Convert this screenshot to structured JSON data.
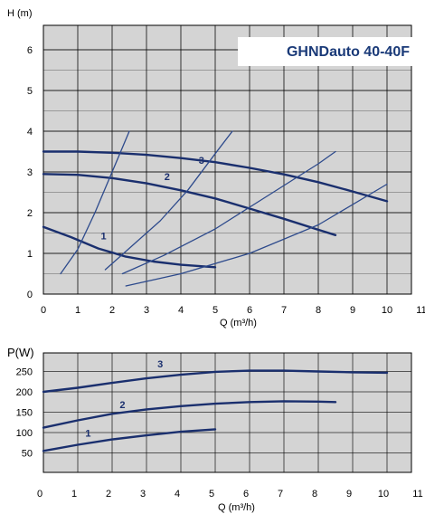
{
  "colors": {
    "background": "#d4d4d4",
    "curve": "#1a2f6e",
    "system": "#2d4a8c",
    "grid": "#000000",
    "title": "#1a3a78"
  },
  "chart_data": [
    {
      "type": "line",
      "title": "GHNDauto 40-40F",
      "xlabel": "Q (m³/h)",
      "ylabel": "H (m)",
      "xlim": [
        0,
        11
      ],
      "ylim": [
        0,
        6.5
      ],
      "x_ticks": [
        "0",
        "1",
        "2",
        "3",
        "4",
        "5",
        "6",
        "7",
        "8",
        "9",
        "10",
        "11"
      ],
      "y_ticks": [
        "0",
        "1",
        "2",
        "3",
        "4",
        "5",
        "6"
      ],
      "grid": true,
      "series": [
        {
          "name": "1",
          "x": [
            0,
            0.8,
            1.6,
            2.4,
            3.2,
            4.0,
            5.0
          ],
          "y": [
            1.65,
            1.4,
            1.12,
            0.92,
            0.8,
            0.72,
            0.66
          ]
        },
        {
          "name": "2",
          "x": [
            0,
            1,
            2,
            3,
            4,
            5,
            6,
            7,
            8,
            8.5
          ],
          "y": [
            2.95,
            2.93,
            2.85,
            2.72,
            2.55,
            2.35,
            2.1,
            1.85,
            1.58,
            1.45
          ]
        },
        {
          "name": "3",
          "x": [
            0,
            1,
            2,
            3,
            4,
            5,
            6,
            7,
            8,
            9,
            10
          ],
          "y": [
            3.5,
            3.5,
            3.47,
            3.42,
            3.34,
            3.24,
            3.1,
            2.94,
            2.75,
            2.52,
            2.28
          ]
        },
        {
          "x": [
            0.5,
            1.0,
            1.5,
            2.0,
            2.5
          ],
          "y": [
            0.5,
            1.1,
            2.0,
            3.0,
            4.0
          ]
        },
        {
          "x": [
            1.8,
            2.6,
            3.4,
            4.2,
            5.0,
            5.5
          ],
          "y": [
            0.6,
            1.2,
            1.8,
            2.55,
            3.45,
            4.0
          ]
        },
        {
          "x": [
            2.3,
            3.5,
            5.0,
            6.5,
            8.0,
            8.5
          ],
          "y": [
            0.5,
            0.95,
            1.6,
            2.4,
            3.2,
            3.5
          ]
        },
        {
          "x": [
            2.4,
            4.0,
            6.0,
            8.0,
            10.0
          ],
          "y": [
            0.2,
            0.5,
            1.0,
            1.7,
            2.7
          ]
        }
      ]
    },
    {
      "type": "line",
      "xlabel": "Q (m³/h)",
      "ylabel": "P(W)",
      "xlim": [
        0,
        11
      ],
      "ylim": [
        0,
        300
      ],
      "x_ticks": [
        "0",
        "1",
        "2",
        "3",
        "4",
        "5",
        "6",
        "7",
        "8",
        "9",
        "10",
        "11"
      ],
      "y_ticks": [
        "50",
        "100",
        "150",
        "200",
        "250"
      ],
      "grid": true,
      "series": [
        {
          "name": "1",
          "x": [
            0,
            1,
            2,
            3,
            4,
            5
          ],
          "y": [
            55,
            70,
            83,
            93,
            102,
            108
          ]
        },
        {
          "name": "2",
          "x": [
            0,
            1,
            2,
            3,
            4,
            5,
            6,
            7,
            8,
            8.5
          ],
          "y": [
            112,
            130,
            146,
            157,
            165,
            171,
            175,
            177,
            176,
            175
          ]
        },
        {
          "name": "3",
          "x": [
            0,
            1,
            2,
            3,
            4,
            5,
            6,
            7,
            8,
            9,
            10
          ],
          "y": [
            200,
            210,
            222,
            233,
            242,
            249,
            252,
            252,
            250,
            248,
            247
          ]
        }
      ]
    }
  ]
}
